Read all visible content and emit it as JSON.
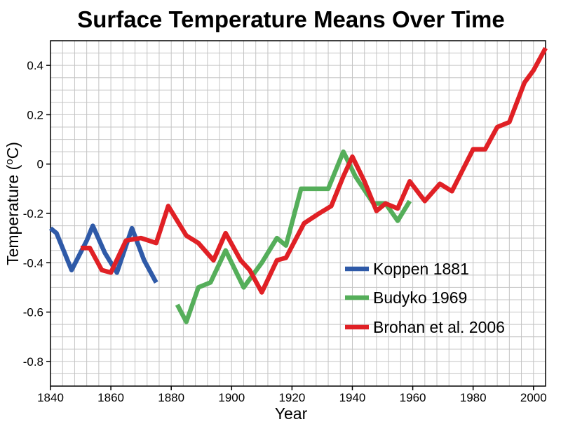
{
  "chart_data": {
    "type": "line",
    "title": "Surface Temperature Means Over Time",
    "xlabel": "Year",
    "ylabel": "Temperature (°C)",
    "xlim": [
      1840,
      2004
    ],
    "ylim": [
      -0.9,
      0.5
    ],
    "x_ticks": [
      1840,
      1860,
      1880,
      1900,
      1920,
      1940,
      1960,
      1980,
      2000
    ],
    "x_tick_labels": [
      "1840",
      "1860",
      "1880",
      "1900",
      "1920",
      "1940",
      "1960",
      "1980",
      "2000"
    ],
    "y_ticks": [
      0.4,
      0.2,
      0,
      -0.2,
      -0.4,
      -0.6,
      -0.8
    ],
    "y_tick_labels": [
      "0.4",
      "0.2",
      "0",
      "-0.2",
      "-0.4",
      "-0.6",
      "-0.8"
    ],
    "grid": true,
    "legend_position": "right",
    "series": [
      {
        "name": "Koppen 1881",
        "color": "#2f5aa8",
        "x": [
          1840,
          1842,
          1847,
          1852,
          1854,
          1858,
          1862,
          1867,
          1871,
          1875
        ],
        "y": [
          -0.26,
          -0.28,
          -0.43,
          -0.31,
          -0.25,
          -0.36,
          -0.44,
          -0.26,
          -0.39,
          -0.48
        ]
      },
      {
        "name": "Budyko 1969",
        "color": "#55ae5a",
        "x": [
          1882,
          1885,
          1889,
          1893,
          1898,
          1904,
          1910,
          1915,
          1918,
          1923,
          1928,
          1932,
          1937,
          1941,
          1947,
          1951,
          1955,
          1959
        ],
        "y": [
          -0.57,
          -0.64,
          -0.5,
          -0.48,
          -0.35,
          -0.5,
          -0.4,
          -0.3,
          -0.33,
          -0.1,
          -0.1,
          -0.1,
          0.05,
          -0.05,
          -0.16,
          -0.16,
          -0.23,
          -0.15
        ]
      },
      {
        "name": "Brohan et al. 2006",
        "color": "#e02025",
        "x": [
          1850,
          1853,
          1857,
          1860,
          1865,
          1870,
          1875,
          1879,
          1885,
          1889,
          1894,
          1898,
          1903,
          1906,
          1910,
          1915,
          1918,
          1924,
          1929,
          1933,
          1937,
          1940,
          1944,
          1948,
          1951,
          1955,
          1959,
          1964,
          1969,
          1973,
          1980,
          1984,
          1988,
          1992,
          1997,
          2000,
          2004
        ],
        "y": [
          -0.34,
          -0.34,
          -0.43,
          -0.44,
          -0.31,
          -0.3,
          -0.32,
          -0.17,
          -0.29,
          -0.32,
          -0.39,
          -0.28,
          -0.39,
          -0.43,
          -0.52,
          -0.39,
          -0.38,
          -0.24,
          -0.2,
          -0.17,
          -0.05,
          0.03,
          -0.07,
          -0.19,
          -0.16,
          -0.18,
          -0.07,
          -0.15,
          -0.08,
          -0.11,
          0.06,
          0.06,
          0.15,
          0.17,
          0.33,
          0.38,
          0.47
        ]
      }
    ]
  }
}
